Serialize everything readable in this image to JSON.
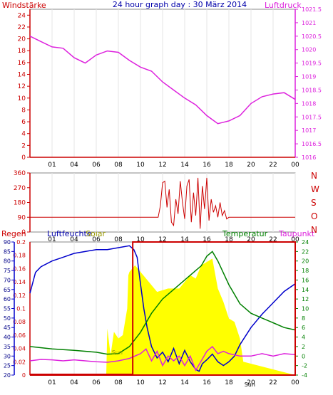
{
  "header": {
    "left_label": "Windstärke",
    "title": "24 hour graph day : 30 März 2014",
    "right_label": "Luftdruck"
  },
  "colors": {
    "red": "#cc0000",
    "magenta": "#dd22dd",
    "blue": "#0000cc",
    "dark_blue": "#000088",
    "green": "#008000",
    "yellow": "#ffff00",
    "olive": "#999900",
    "title_blue": "#0000aa"
  },
  "chart_data": [
    {
      "id": "pressure_wind_speed",
      "type": "line",
      "title": "24 hour graph day : 30 März 2014",
      "x_ticks": [
        "01",
        "04",
        "06",
        "08",
        "10",
        "12",
        "14",
        "16",
        "18",
        "20",
        "22",
        "00"
      ],
      "left_axis": {
        "label": "Windstärke",
        "ticks": [
          0,
          2,
          4,
          6,
          8,
          10,
          12,
          14,
          16,
          18,
          20,
          22,
          24
        ],
        "range": [
          0,
          25
        ]
      },
      "right_axis": {
        "label": "Luftdruck",
        "ticks": [
          "1016",
          "1016.5",
          "1017",
          "1017.5",
          "1018",
          "1018.5",
          "1019",
          "1019.5",
          "1020",
          "1020.5",
          "1021",
          "1021.5"
        ],
        "range": [
          1016,
          1021.5
        ]
      },
      "series": [
        {
          "name": "Luftdruck",
          "axis": "right",
          "x": [
            0,
            1,
            2,
            3,
            4,
            5,
            6,
            7,
            8,
            9,
            10,
            11,
            12,
            13,
            14,
            15,
            16,
            16.5,
            17,
            17.5,
            18,
            19,
            20,
            21,
            22,
            23,
            24
          ],
          "values": [
            1020.5,
            1020.3,
            1020.1,
            1020.05,
            1019.7,
            1019.5,
            1019.8,
            1019.95,
            1019.9,
            1019.6,
            1019.35,
            1019.2,
            1018.8,
            1018.5,
            1018.2,
            1017.95,
            1017.55,
            1017.4,
            1017.25,
            1017.3,
            1017.35,
            1017.55,
            1018.0,
            1018.25,
            1018.35,
            1018.4,
            1018.15
          ]
        },
        {
          "name": "Windstärke",
          "axis": "left",
          "x": [
            0,
            24
          ],
          "values": [
            0,
            0
          ]
        }
      ]
    },
    {
      "id": "wind_direction",
      "type": "line",
      "x_ticks": [
        "01",
        "04",
        "06",
        "08",
        "10",
        "12",
        "14",
        "16",
        "18",
        "20",
        "22",
        "00"
      ],
      "left_axis": {
        "ticks": [
          0,
          90,
          180,
          270,
          360
        ],
        "range": [
          0,
          360
        ]
      },
      "right_labels": [
        "N",
        "W",
        "S",
        "O",
        "N"
      ],
      "series": [
        {
          "name": "Windrichtung",
          "x": [
            0,
            11.6,
            11.8,
            12.0,
            12.2,
            12.4,
            12.6,
            12.8,
            13.0,
            13.2,
            13.4,
            13.6,
            13.8,
            14.0,
            14.2,
            14.4,
            14.6,
            14.8,
            15.0,
            15.2,
            15.4,
            15.6,
            15.8,
            16.0,
            16.2,
            16.4,
            16.6,
            16.8,
            17.0,
            17.2,
            17.4,
            17.6,
            17.8,
            18.0,
            24
          ],
          "values": [
            90,
            90,
            160,
            300,
            310,
            150,
            260,
            60,
            40,
            200,
            110,
            310,
            180,
            80,
            280,
            320,
            60,
            240,
            100,
            330,
            20,
            280,
            140,
            330,
            70,
            200,
            120,
            160,
            90,
            180,
            100,
            130,
            80,
            90,
            90
          ]
        }
      ]
    },
    {
      "id": "rain_humidity_solar_temperature",
      "type": "line",
      "x_ticks": [
        "01",
        "04",
        "06",
        "08",
        "10",
        "12",
        "14",
        "16",
        "18",
        "20",
        "22",
        "00"
      ],
      "labels": {
        "rain": "Regen",
        "humidity": "Luftfeuchte",
        "solar": "Solar",
        "temperature": "Temperatur",
        "dewpoint": "Taupunkt",
        "sunrise": "Sun",
        "sunset": "Sun"
      },
      "rain_axis": {
        "ticks": [
          "0",
          "0.02",
          "0.04",
          "0.06",
          "0.08",
          "0.1",
          "0.12",
          "0.14",
          "0.16",
          "0.18",
          "0.2"
        ],
        "range": [
          0,
          0.2
        ]
      },
      "humidity_axis": {
        "ticks": [
          20,
          25,
          30,
          35,
          40,
          45,
          50,
          55,
          60,
          65,
          70,
          75,
          80,
          85,
          90
        ],
        "range": [
          20,
          90
        ]
      },
      "temperature_axis": {
        "ticks": [
          -4,
          -2,
          0,
          2,
          4,
          6,
          8,
          10,
          12,
          14,
          16,
          18,
          20,
          22,
          24
        ],
        "range": [
          -4,
          24
        ]
      },
      "series": [
        {
          "name": "Luftfeuchte",
          "axis": "humidity",
          "x": [
            0,
            0.5,
            1,
            2,
            3,
            4,
            5,
            6,
            7,
            8,
            9,
            9.4,
            9.7,
            10,
            10.3,
            10.6,
            11,
            11.5,
            12,
            12.5,
            13,
            13.5,
            14,
            14.5,
            15,
            15.3,
            15.6,
            16,
            16.5,
            17,
            17.5,
            18,
            18.5,
            19,
            20,
            21,
            22,
            23,
            24
          ],
          "values": [
            63,
            74,
            77,
            80,
            82,
            84,
            85,
            86,
            86,
            87,
            88,
            86,
            82,
            68,
            55,
            45,
            35,
            29,
            32,
            27,
            34,
            26,
            33,
            27,
            23,
            22,
            26,
            28,
            31,
            27,
            25,
            27,
            30,
            36,
            45,
            52,
            58,
            64,
            68
          ]
        },
        {
          "name": "Temperatur",
          "axis": "temperature",
          "x": [
            0,
            2,
            4,
            6,
            7,
            8,
            9,
            10,
            11,
            12,
            13,
            14,
            15,
            15.5,
            16,
            16.5,
            17,
            18,
            19,
            20,
            21,
            22,
            23,
            24
          ],
          "values": [
            2,
            1.5,
            1.2,
            0.8,
            0.4,
            0.5,
            2,
            5,
            9,
            12,
            14,
            16,
            18,
            19,
            21,
            22,
            20,
            15,
            11,
            9,
            8,
            7,
            6,
            5.5
          ]
        },
        {
          "name": "Taupunkt",
          "axis": "temperature",
          "x": [
            0,
            1,
            2,
            3,
            4,
            5,
            6,
            7,
            8,
            9,
            10,
            10.5,
            11,
            11.5,
            12,
            12.5,
            13,
            13.5,
            14,
            14.5,
            15,
            15.5,
            16,
            16.5,
            17,
            17.5,
            18,
            19,
            20,
            21,
            22,
            23,
            24
          ],
          "values": [
            -1,
            -0.7,
            -0.8,
            -1,
            -0.8,
            -1,
            -1.2,
            -1.3,
            -1,
            -0.5,
            0.5,
            1.5,
            -1,
            1,
            -2,
            0,
            -1,
            0,
            -2,
            0,
            -3,
            -1,
            1,
            2,
            0.5,
            1,
            0.5,
            0,
            0,
            0.5,
            0,
            0.5,
            0.3
          ]
        },
        {
          "name": "Solar",
          "axis": "rain",
          "x": [
            0,
            6.9,
            7.0,
            7.3,
            7.6,
            8.0,
            8.4,
            8.8,
            8.9,
            9.0,
            9.5,
            10.5,
            11.5,
            12.5,
            13.5,
            14.5,
            15.0,
            15.5,
            16.5,
            17.0,
            17.5,
            18.0,
            18.5,
            19.0,
            19.3,
            24
          ],
          "values": [
            0,
            0,
            0.07,
            0.03,
            0.065,
            0.055,
            0.06,
            0.1,
            0.15,
            0.155,
            0.165,
            0.145,
            0.125,
            0.13,
            0.13,
            0.15,
            0.145,
            0.165,
            0.175,
            0.13,
            0.11,
            0.085,
            0.08,
            0.055,
            0.02,
            0
          ]
        },
        {
          "name": "Regen",
          "axis": "rain",
          "x": [
            0,
            24
          ],
          "values": [
            0,
            0
          ]
        }
      ]
    }
  ]
}
